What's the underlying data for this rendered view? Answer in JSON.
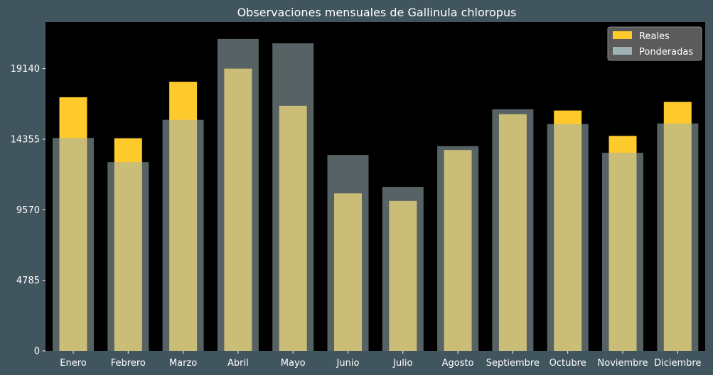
{
  "chart_data": {
    "type": "bar",
    "title": "Observaciones mensuales de Gallinula chloropus",
    "categories": [
      "Enero",
      "Febrero",
      "Marzo",
      "Abril",
      "Mayo",
      "Junio",
      "Julio",
      "Agosto",
      "Septiembre",
      "Octubre",
      "Noviembre",
      "Diciembre"
    ],
    "y_ticks": [
      0,
      4785,
      9570,
      14355,
      19140
    ],
    "ylim": [
      0,
      22300
    ],
    "xlabel": "",
    "ylabel": "",
    "grid": false,
    "legend_position": "top-right",
    "series": [
      {
        "name": "Reales",
        "color": "#ffca2c",
        "values": [
          17200,
          14420,
          18250,
          19140,
          16620,
          10680,
          10170,
          13620,
          16050,
          16300,
          14580,
          16880
        ]
      },
      {
        "name": "Ponderadas",
        "color": "#9fb3b7",
        "values": [
          14440,
          12800,
          15670,
          21150,
          20860,
          13290,
          11120,
          13880,
          16380,
          15380,
          13430,
          15420
        ]
      }
    ]
  }
}
